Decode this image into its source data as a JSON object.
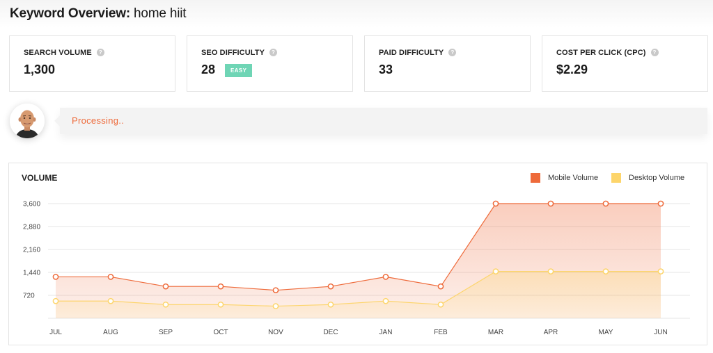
{
  "header": {
    "label": "Keyword Overview:",
    "keyword": "home hiit"
  },
  "cards": [
    {
      "label": "SEARCH VOLUME",
      "value": "1,300",
      "help": "?"
    },
    {
      "label": "SEO DIFFICULTY",
      "value": "28",
      "help": "?",
      "badge": "EASY"
    },
    {
      "label": "PAID DIFFICULTY",
      "value": "33",
      "help": "?"
    },
    {
      "label": "COST PER CLICK (CPC)",
      "value": "$2.29",
      "help": "?"
    }
  ],
  "assistant": {
    "message": "Processing.."
  },
  "colors": {
    "mobile": "#ee6a3a",
    "desktop": "#fdd56b",
    "badge": "#6fd5b5",
    "accent": "#ee6a3a"
  },
  "chart": {
    "title": "VOLUME"
  },
  "chart_data": {
    "type": "area",
    "title": "VOLUME",
    "categories": [
      "JUL",
      "AUG",
      "SEP",
      "OCT",
      "NOV",
      "DEC",
      "JAN",
      "FEB",
      "MAR",
      "APR",
      "MAY",
      "JUN"
    ],
    "series": [
      {
        "name": "Mobile Volume",
        "values": [
          1300,
          1300,
          1000,
          1000,
          880,
          1000,
          1300,
          1000,
          3600,
          3600,
          3600,
          3600
        ]
      },
      {
        "name": "Desktop Volume",
        "values": [
          540,
          540,
          430,
          430,
          380,
          430,
          540,
          430,
          1470,
          1470,
          1470,
          1470
        ]
      }
    ],
    "yticks": [
      720,
      1440,
      2160,
      2880,
      3600
    ],
    "ytick_labels": [
      "720",
      "1,440",
      "2,160",
      "2,880",
      "3,600"
    ],
    "ylim": [
      0,
      3600
    ],
    "legend": "top-right",
    "grid": true
  }
}
